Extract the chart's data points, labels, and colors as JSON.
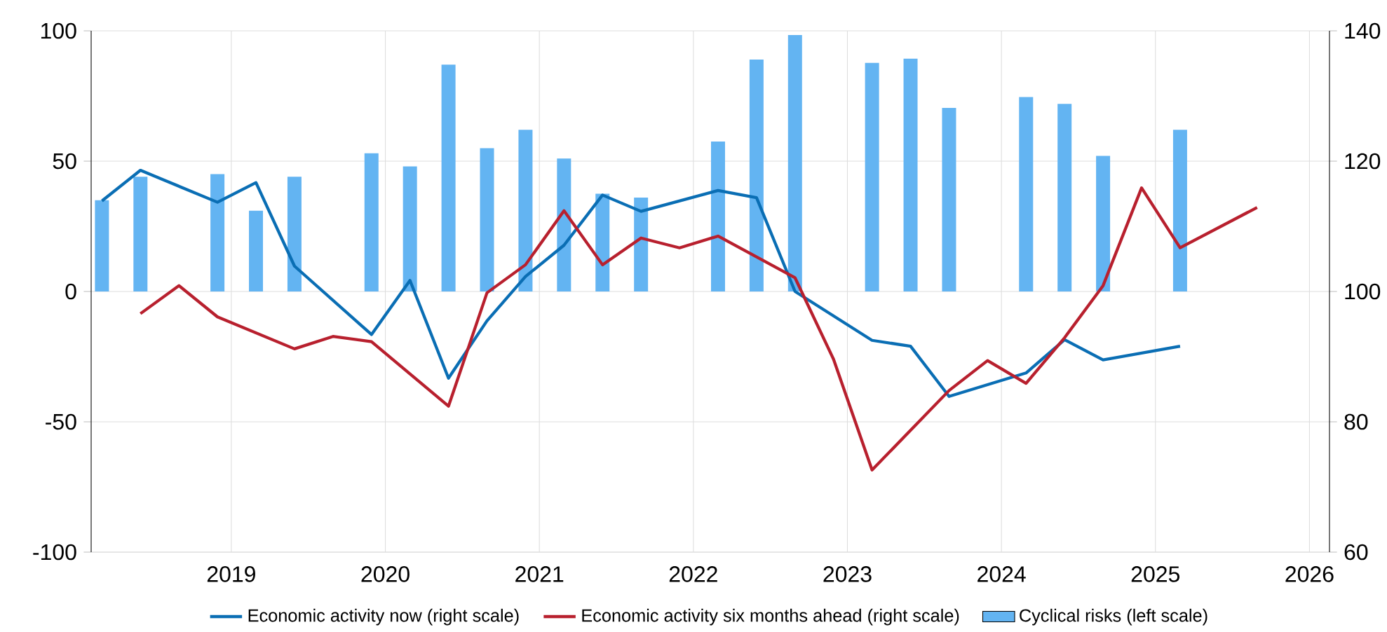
{
  "chart_data": {
    "type": "bar",
    "xlim": [
      2018.09,
      2026.13
    ],
    "xticks": [
      2019,
      2020,
      2021,
      2022,
      2023,
      2024,
      2025,
      2026
    ],
    "ylim": [
      -100,
      100
    ],
    "yticks": [
      -100,
      -50,
      0,
      50,
      100
    ],
    "y2lim": [
      60,
      140
    ],
    "y2ticks": [
      60,
      80,
      100,
      120,
      140
    ],
    "grid": true,
    "legend": "bottom",
    "series": [
      {
        "name": "Economic activity now (right scale)",
        "type": "line",
        "axis": "y2",
        "color": "#0a6eb4",
        "x": [
          2018.16,
          2018.41,
          2018.91,
          2019.16,
          2019.41,
          2019.91,
          2020.16,
          2020.41,
          2020.66,
          2020.91,
          2021.16,
          2021.41,
          2021.66,
          2022.16,
          2022.41,
          2022.66,
          2023.16,
          2023.41,
          2023.66,
          2024.16,
          2024.41,
          2024.66,
          2025.16
        ],
        "values": [
          113.9,
          118.6,
          113.7,
          116.7,
          103.9,
          93.4,
          101.7,
          86.7,
          95.5,
          102.3,
          107.1,
          114.8,
          112.3,
          115.5,
          114.4,
          100,
          92.5,
          91.6,
          83.9,
          87.5,
          92.6,
          89.5,
          91.6
        ]
      },
      {
        "name": "Economic activity six months ahead (right scale)",
        "type": "line",
        "axis": "y2",
        "color": "#b8202e",
        "x": [
          2018.41,
          2018.66,
          2018.91,
          2019.41,
          2019.66,
          2019.91,
          2020.41,
          2020.66,
          2020.91,
          2021.16,
          2021.41,
          2021.66,
          2021.91,
          2022.16,
          2022.66,
          2022.91,
          2023.16,
          2023.66,
          2023.91,
          2024.16,
          2024.41,
          2024.66,
          2024.91,
          2025.16,
          2025.66
        ],
        "values": [
          96.6,
          100.9,
          96.1,
          91.2,
          93.1,
          92.3,
          82.4,
          99.8,
          104.1,
          112.4,
          104.1,
          108.2,
          106.7,
          108.5,
          102.1,
          89.6,
          72.6,
          84.8,
          89.4,
          85.9,
          92.9,
          100.9,
          115.9,
          106.7,
          112.9
        ]
      },
      {
        "name": "Cyclical risks (left scale)",
        "axis": "y",
        "color": "#63b4f2",
        "x": [
          2018.16,
          2018.41,
          2018.91,
          2019.16,
          2019.41,
          2019.91,
          2020.16,
          2020.41,
          2020.66,
          2020.91,
          2021.16,
          2021.41,
          2021.66,
          2022.16,
          2022.41,
          2022.66,
          2023.16,
          2023.41,
          2023.66,
          2024.16,
          2024.41,
          2024.66,
          2025.16
        ],
        "values": [
          35,
          44,
          45,
          31,
          44,
          53,
          48,
          87,
          55,
          62,
          51,
          37.5,
          36,
          57.5,
          89,
          98.4,
          87.7,
          89.3,
          70.4,
          74.6,
          72,
          52,
          62
        ]
      }
    ]
  }
}
